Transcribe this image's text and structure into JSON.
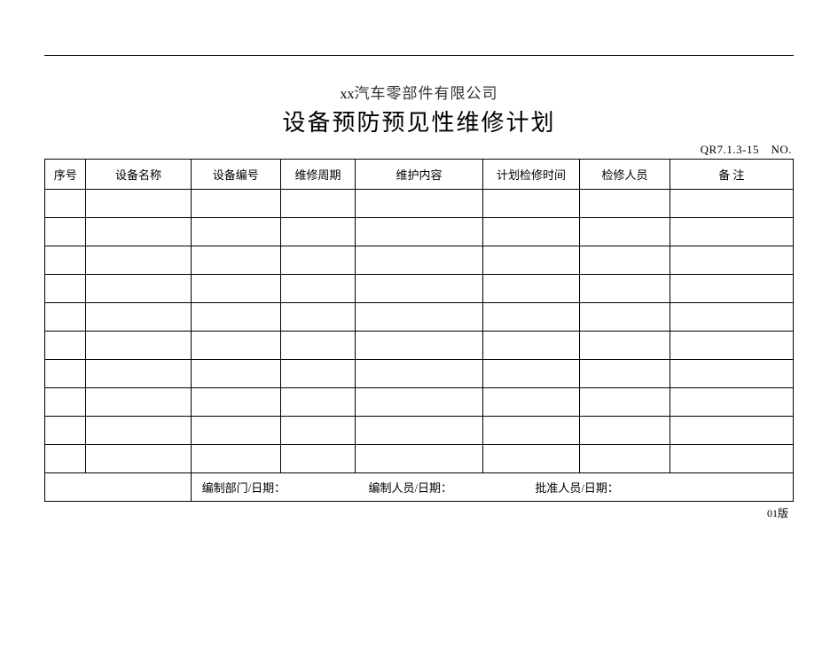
{
  "header": {
    "company_prefix": "xx",
    "company_suffix": "汽车零部件有限公司",
    "title": "设备预防预见性维修计划",
    "doc_no": "QR7.1.3-15 NO."
  },
  "table": {
    "columns": {
      "seq": "序号",
      "name": "设备名称",
      "code": "设备编号",
      "cycle": "维修周期",
      "content": "维护内容",
      "plan_time": "计划检修时间",
      "staff": "检修人员",
      "remark": "备   注"
    },
    "empty_rows": 10
  },
  "footer": {
    "dept_date": "编制部门/日期：",
    "author_date": "编制人员/日期：",
    "approver_date": "批准人员/日期："
  },
  "version": "01版"
}
